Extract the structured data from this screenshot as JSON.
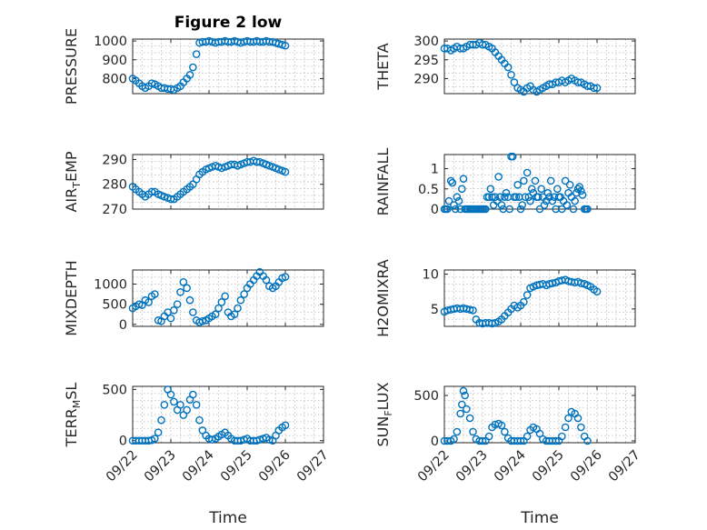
{
  "figure": {
    "title": "Figure 2 low",
    "xlabel": "Time"
  },
  "colors": {
    "marker": "#0072bd",
    "axis": "#262626",
    "grid": "#c8c8c8"
  },
  "chart_data": [
    {
      "type": "scatter",
      "id": "pressure",
      "title": "Figure 2 low",
      "ylabel": "PRESSURE",
      "ylim": [
        720,
        1010
      ],
      "yticks": [
        800,
        900,
        1000
      ],
      "xlim": [
        0,
        5
      ],
      "grid": true,
      "x": [
        0,
        0.08,
        0.17,
        0.25,
        0.33,
        0.42,
        0.5,
        0.58,
        0.67,
        0.75,
        0.83,
        0.92,
        1.0,
        1.08,
        1.17,
        1.25,
        1.33,
        1.42,
        1.5,
        1.58,
        1.67,
        1.75,
        1.83,
        1.92,
        2.0,
        2.08,
        2.17,
        2.25,
        2.33,
        2.42,
        2.5,
        2.58,
        2.67,
        2.75,
        2.83,
        2.92,
        3.0,
        3.08,
        3.17,
        3.25,
        3.33,
        3.42,
        3.5,
        3.58,
        3.67,
        3.75,
        3.83,
        3.92,
        4.0
      ],
      "y": [
        800,
        790,
        775,
        760,
        750,
        760,
        775,
        770,
        760,
        750,
        750,
        745,
        745,
        740,
        750,
        760,
        780,
        800,
        820,
        860,
        930,
        990,
        995,
        995,
        1000,
        995,
        990,
        995,
        995,
        1000,
        995,
        995,
        1000,
        995,
        990,
        995,
        1000,
        995,
        995,
        1000,
        995,
        995,
        1000,
        995,
        995,
        990,
        985,
        980,
        975
      ]
    },
    {
      "type": "scatter",
      "id": "theta",
      "ylabel": "THETA",
      "ylim": [
        286,
        300.5
      ],
      "yticks": [
        290,
        295,
        300
      ],
      "xlim": [
        0,
        5
      ],
      "grid": true,
      "x": [
        0,
        0.08,
        0.17,
        0.25,
        0.33,
        0.42,
        0.5,
        0.58,
        0.67,
        0.75,
        0.83,
        0.92,
        1.0,
        1.08,
        1.17,
        1.25,
        1.33,
        1.42,
        1.5,
        1.58,
        1.67,
        1.75,
        1.83,
        1.92,
        2.0,
        2.08,
        2.17,
        2.25,
        2.33,
        2.42,
        2.5,
        2.58,
        2.67,
        2.75,
        2.83,
        2.92,
        3.0,
        3.08,
        3.17,
        3.25,
        3.33,
        3.42,
        3.5,
        3.58,
        3.67,
        3.75,
        3.83,
        3.92,
        4.0
      ],
      "y": [
        298,
        298,
        297.5,
        298,
        298.5,
        298,
        298,
        298.5,
        299,
        299,
        299,
        299.5,
        299,
        299,
        298.5,
        298,
        297,
        296,
        295,
        294,
        293,
        291,
        289,
        287.5,
        287,
        286.5,
        287.5,
        288,
        287,
        286.5,
        287,
        287.5,
        288,
        288.5,
        288.5,
        289,
        289,
        289.5,
        289,
        289.5,
        290,
        289.5,
        289,
        289,
        288.5,
        288,
        288,
        287.5,
        287.5
      ]
    },
    {
      "type": "scatter",
      "id": "air_temp",
      "ylabel": "AIR_TEMP",
      "ylim": [
        270,
        292
      ],
      "yticks": [
        270,
        280,
        290
      ],
      "xlim": [
        0,
        5
      ],
      "grid": true,
      "x": [
        0,
        0.08,
        0.17,
        0.25,
        0.33,
        0.42,
        0.5,
        0.58,
        0.67,
        0.75,
        0.83,
        0.92,
        1.0,
        1.08,
        1.17,
        1.25,
        1.33,
        1.42,
        1.5,
        1.58,
        1.67,
        1.75,
        1.83,
        1.92,
        2.0,
        2.08,
        2.17,
        2.25,
        2.33,
        2.42,
        2.5,
        2.58,
        2.67,
        2.75,
        2.83,
        2.92,
        3.0,
        3.08,
        3.17,
        3.25,
        3.33,
        3.42,
        3.5,
        3.58,
        3.67,
        3.75,
        3.83,
        3.92,
        4.0
      ],
      "y": [
        279,
        278,
        277,
        276,
        275,
        276,
        277,
        277,
        276,
        275.5,
        275,
        274.5,
        274,
        274,
        275,
        276,
        277,
        278,
        279,
        280,
        282,
        284,
        285,
        286,
        286.5,
        287,
        287.5,
        287,
        286.5,
        287,
        287.5,
        288,
        288,
        287.5,
        288,
        288.5,
        289,
        289,
        289.5,
        289,
        289,
        288.5,
        288,
        287.5,
        287,
        286.5,
        286,
        285.5,
        285
      ]
    },
    {
      "type": "scatter",
      "id": "rainfall",
      "ylabel": "RAINFALL",
      "ylim": [
        0,
        1.35
      ],
      "yticks": [
        0,
        0.5,
        1
      ],
      "ytick_labels": [
        "0",
        "0.5",
        "1"
      ],
      "xlim": [
        0,
        5
      ],
      "grid": true,
      "x": [
        0,
        0.04,
        0.08,
        0.12,
        0.17,
        0.21,
        0.25,
        0.29,
        0.33,
        0.38,
        0.42,
        0.46,
        0.5,
        0.54,
        0.58,
        0.62,
        0.67,
        0.71,
        0.75,
        0.79,
        0.83,
        0.88,
        0.92,
        0.96,
        1.0,
        1.04,
        1.08,
        1.12,
        1.17,
        1.21,
        1.25,
        1.29,
        1.33,
        1.38,
        1.42,
        1.46,
        1.5,
        1.54,
        1.58,
        1.62,
        1.67,
        1.71,
        1.75,
        1.79,
        1.83,
        1.88,
        1.92,
        1.96,
        2.0,
        2.04,
        2.08,
        2.12,
        2.17,
        2.21,
        2.25,
        2.29,
        2.33,
        2.38,
        2.42,
        2.46,
        2.5,
        2.54,
        2.58,
        2.62,
        2.67,
        2.71,
        2.75,
        2.79,
        2.83,
        2.88,
        2.92,
        2.96,
        3.0,
        3.04,
        3.08,
        3.12,
        3.17,
        3.21,
        3.25,
        3.29,
        3.33,
        3.38,
        3.42,
        3.46,
        3.5,
        3.54,
        3.58,
        3.62,
        3.67,
        3.71,
        3.75
      ],
      "y": [
        0,
        0,
        0,
        0.2,
        0.7,
        0.65,
        0.1,
        0,
        0.3,
        0.2,
        0,
        0.5,
        0.75,
        0,
        0,
        0,
        0,
        0,
        0,
        0,
        0,
        0,
        0,
        0,
        0,
        0,
        0,
        0.3,
        0.3,
        0.5,
        0.3,
        0.1,
        0.3,
        0.2,
        0.8,
        0.3,
        0.1,
        0,
        0.3,
        0.4,
        0.3,
        0,
        1.3,
        1.3,
        0.3,
        0.3,
        0.6,
        0.3,
        0,
        0.1,
        0.7,
        0.3,
        0.9,
        0.3,
        0.2,
        0.5,
        0.4,
        0.7,
        0.3,
        0.3,
        0,
        0.5,
        0.3,
        0.1,
        0.2,
        0.4,
        0.3,
        0.7,
        0.2,
        0.3,
        0,
        0.5,
        0.3,
        0.3,
        0,
        0.2,
        0.7,
        0.1,
        0.4,
        0.6,
        0.3,
        0,
        0.2,
        0.4,
        0.5,
        0.55,
        0.45,
        0.35,
        0,
        0,
        0
      ]
    },
    {
      "type": "scatter",
      "id": "mixdepth",
      "ylabel": "MIXDEPTH",
      "ylim": [
        -50,
        1350
      ],
      "yticks": [
        0,
        500,
        1000
      ],
      "xlim": [
        0,
        5
      ],
      "grid": true,
      "x": [
        0,
        0.08,
        0.17,
        0.25,
        0.33,
        0.42,
        0.5,
        0.58,
        0.67,
        0.75,
        0.83,
        0.92,
        1.0,
        1.08,
        1.17,
        1.25,
        1.33,
        1.42,
        1.5,
        1.58,
        1.67,
        1.75,
        1.83,
        1.92,
        2.0,
        2.08,
        2.17,
        2.25,
        2.33,
        2.42,
        2.5,
        2.58,
        2.67,
        2.75,
        2.83,
        2.92,
        3.0,
        3.08,
        3.17,
        3.25,
        3.33,
        3.42,
        3.5,
        3.58,
        3.67,
        3.75,
        3.83,
        3.92,
        4.0
      ],
      "y": [
        400,
        450,
        500,
        480,
        600,
        550,
        700,
        750,
        100,
        80,
        200,
        300,
        150,
        350,
        500,
        800,
        1050,
        900,
        600,
        300,
        100,
        50,
        80,
        100,
        150,
        200,
        250,
        400,
        550,
        700,
        300,
        200,
        250,
        400,
        600,
        750,
        900,
        1000,
        1100,
        1200,
        1300,
        1200,
        1100,
        950,
        900,
        950,
        1050,
        1150,
        1180
      ]
    },
    {
      "type": "scatter",
      "id": "h2omixra",
      "ylabel": "H2OMIXRA",
      "ylim": [
        2.5,
        10.6
      ],
      "yticks": [
        5,
        10
      ],
      "xlim": [
        0,
        5
      ],
      "grid": true,
      "x": [
        0,
        0.08,
        0.17,
        0.25,
        0.33,
        0.42,
        0.5,
        0.58,
        0.67,
        0.75,
        0.83,
        0.92,
        1.0,
        1.08,
        1.17,
        1.25,
        1.33,
        1.42,
        1.5,
        1.58,
        1.67,
        1.75,
        1.83,
        1.92,
        2.0,
        2.08,
        2.17,
        2.25,
        2.33,
        2.42,
        2.5,
        2.58,
        2.67,
        2.75,
        2.83,
        2.92,
        3.0,
        3.08,
        3.17,
        3.25,
        3.33,
        3.42,
        3.5,
        3.58,
        3.67,
        3.75,
        3.83,
        3.92,
        4.0
      ],
      "y": [
        4.6,
        4.8,
        4.9,
        5.0,
        5.1,
        5.0,
        5.1,
        5.0,
        4.9,
        4.8,
        3.5,
        3.0,
        2.9,
        3.0,
        3.0,
        2.9,
        3.0,
        3.2,
        3.5,
        4.0,
        4.5,
        5.0,
        5.5,
        5.2,
        5.5,
        6.0,
        7.0,
        8.0,
        8.2,
        8.4,
        8.5,
        8.6,
        8.4,
        8.6,
        8.7,
        8.8,
        9.0,
        9.1,
        9.2,
        9.0,
        8.9,
        8.8,
        8.9,
        8.7,
        8.6,
        8.4,
        8.2,
        7.8,
        7.5
      ]
    },
    {
      "type": "scatter",
      "id": "terr_msl",
      "ylabel": "TERR_MSL",
      "ylim": [
        -20,
        530
      ],
      "yticks": [
        0,
        500
      ],
      "xlim": [
        0,
        5
      ],
      "grid": true,
      "x": [
        0,
        0.08,
        0.17,
        0.25,
        0.33,
        0.42,
        0.5,
        0.58,
        0.67,
        0.75,
        0.83,
        0.92,
        1.0,
        1.08,
        1.17,
        1.25,
        1.33,
        1.42,
        1.5,
        1.58,
        1.67,
        1.75,
        1.83,
        1.92,
        2.0,
        2.08,
        2.17,
        2.25,
        2.33,
        2.42,
        2.5,
        2.58,
        2.67,
        2.75,
        2.83,
        2.92,
        3.0,
        3.08,
        3.17,
        3.25,
        3.33,
        3.42,
        3.5,
        3.58,
        3.67,
        3.75,
        3.83,
        3.92,
        4.0
      ],
      "y": [
        0,
        0,
        0,
        0,
        0,
        0,
        5,
        20,
        80,
        200,
        350,
        500,
        450,
        380,
        300,
        350,
        250,
        300,
        400,
        450,
        350,
        200,
        100,
        50,
        20,
        10,
        20,
        40,
        60,
        80,
        50,
        20,
        0,
        0,
        0,
        10,
        20,
        0,
        0,
        0,
        10,
        20,
        30,
        10,
        0,
        50,
        100,
        130,
        150
      ]
    },
    {
      "type": "scatter",
      "id": "sun_flux",
      "ylabel": "SUN_FLUX",
      "ylim": [
        -20,
        600
      ],
      "yticks": [
        0,
        500
      ],
      "xlim": [
        0,
        5
      ],
      "grid": true,
      "x": [
        0,
        0.08,
        0.17,
        0.25,
        0.33,
        0.42,
        0.46,
        0.5,
        0.54,
        0.58,
        0.67,
        0.75,
        0.83,
        0.92,
        1.0,
        1.08,
        1.17,
        1.25,
        1.33,
        1.42,
        1.5,
        1.58,
        1.67,
        1.75,
        1.83,
        1.92,
        2.0,
        2.08,
        2.17,
        2.25,
        2.33,
        2.42,
        2.5,
        2.58,
        2.67,
        2.75,
        2.83,
        2.92,
        3.0,
        3.08,
        3.17,
        3.25,
        3.33,
        3.42,
        3.5,
        3.58,
        3.67,
        3.75
      ],
      "y": [
        0,
        0,
        0,
        20,
        100,
        300,
        400,
        550,
        500,
        350,
        250,
        100,
        20,
        0,
        0,
        0,
        50,
        150,
        180,
        190,
        170,
        100,
        30,
        0,
        0,
        0,
        0,
        0,
        50,
        120,
        150,
        130,
        80,
        20,
        0,
        0,
        0,
        0,
        0,
        50,
        150,
        250,
        320,
        300,
        250,
        150,
        50,
        0
      ]
    }
  ],
  "x_axis": {
    "ticks": [
      0,
      1,
      2,
      3,
      4,
      5
    ],
    "tick_labels": [
      "09/22",
      "09/23",
      "09/24",
      "09/25",
      "09/26",
      "09/27"
    ]
  }
}
